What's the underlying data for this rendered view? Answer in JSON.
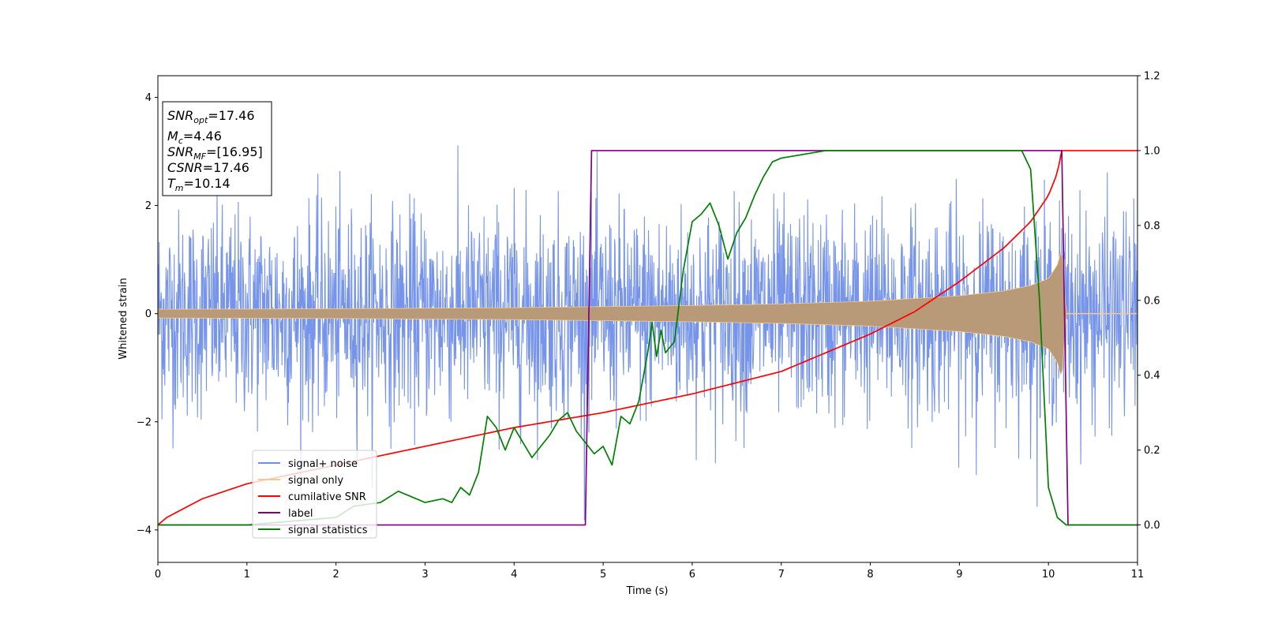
{
  "chart_data": {
    "type": "line",
    "title": "",
    "xlabel": "Time (s)",
    "ylabel": "Whitened strain",
    "xlim": [
      0,
      11
    ],
    "ylim": [
      -4.6,
      4.4
    ],
    "y2lim": [
      -0.1,
      1.2
    ],
    "x_ticks": [
      "0",
      "1",
      "2",
      "3",
      "4",
      "5",
      "6",
      "7",
      "8",
      "9",
      "10",
      "11"
    ],
    "y_ticks": [
      "−4",
      "−2",
      "0",
      "2",
      "4"
    ],
    "y2_ticks": [
      "0.0",
      "0.2",
      "0.4",
      "0.6",
      "0.8",
      "1.0",
      "1.2"
    ],
    "legend_location": "lower-left",
    "annotation_lines": [
      {
        "base": "SNR",
        "sub": "opt",
        "value": "=17.46"
      },
      {
        "base": "M",
        "sub": "c",
        "value": "=4.46"
      },
      {
        "base": "SNR",
        "sub": "MF",
        "value": "=[16.95]"
      },
      {
        "base": "CSNR",
        "sub": "",
        "value": "=17.46"
      },
      {
        "base": "T",
        "sub": "m",
        "value": "=10.14"
      }
    ],
    "series": [
      {
        "name": "signal+ noise",
        "axis": "left",
        "color": "#6f8ee8",
        "description_values": "noise band roughly ±2.5 with spikes up to about ±4, from t=0 to t=11"
      },
      {
        "name": "signal only",
        "axis": "left",
        "color": "#f5c98a",
        "envelope": {
          "x": [
            0,
            1,
            2,
            3,
            4,
            5,
            6,
            7,
            8,
            9,
            9.5,
            9.8,
            10.0,
            10.1,
            10.15,
            10.2,
            11
          ],
          "amplitude": [
            0.08,
            0.085,
            0.09,
            0.1,
            0.11,
            0.13,
            0.15,
            0.18,
            0.23,
            0.33,
            0.42,
            0.52,
            0.65,
            0.9,
            1.2,
            0.0,
            0.0
          ]
        }
      },
      {
        "name": "cumilative SNR",
        "axis": "right",
        "color": "#ff0000",
        "x": [
          0,
          0.1,
          0.5,
          1,
          2,
          3,
          4,
          5,
          6,
          7,
          8,
          8.5,
          9,
          9.5,
          9.8,
          10.0,
          10.1,
          10.15,
          11
        ],
        "values": [
          0.0,
          0.02,
          0.07,
          0.11,
          0.16,
          0.21,
          0.26,
          0.3,
          0.35,
          0.41,
          0.51,
          0.57,
          0.65,
          0.74,
          0.81,
          0.88,
          0.94,
          1.0,
          1.0
        ]
      },
      {
        "name": "label",
        "axis": "right",
        "color": "#800080",
        "x": [
          0,
          4.8,
          4.87,
          10.15,
          10.22,
          11
        ],
        "values": [
          0,
          0,
          1,
          1,
          0,
          0
        ]
      },
      {
        "name": "signal statistics",
        "axis": "right",
        "color": "#008000",
        "x": [
          0,
          0.5,
          1.0,
          1.5,
          2.0,
          2.2,
          2.5,
          2.7,
          2.8,
          3.0,
          3.2,
          3.3,
          3.4,
          3.5,
          3.6,
          3.7,
          3.8,
          3.9,
          4.0,
          4.1,
          4.2,
          4.3,
          4.4,
          4.5,
          4.6,
          4.7,
          4.8,
          4.9,
          5.0,
          5.1,
          5.2,
          5.3,
          5.4,
          5.5,
          5.55,
          5.6,
          5.65,
          5.7,
          5.8,
          5.9,
          6.0,
          6.1,
          6.2,
          6.3,
          6.4,
          6.5,
          6.6,
          6.7,
          6.8,
          6.9,
          7.0,
          7.5,
          8.0,
          8.5,
          9.0,
          9.5,
          9.7,
          9.8,
          9.9,
          10.0,
          10.1,
          10.2,
          11.0
        ],
        "values": [
          0.0,
          0.0,
          0.0,
          0.01,
          0.02,
          0.05,
          0.06,
          0.09,
          0.08,
          0.06,
          0.07,
          0.06,
          0.1,
          0.08,
          0.14,
          0.29,
          0.26,
          0.2,
          0.26,
          0.22,
          0.18,
          0.21,
          0.24,
          0.28,
          0.3,
          0.25,
          0.22,
          0.19,
          0.21,
          0.16,
          0.29,
          0.27,
          0.33,
          0.46,
          0.54,
          0.45,
          0.52,
          0.46,
          0.49,
          0.68,
          0.81,
          0.83,
          0.86,
          0.8,
          0.71,
          0.78,
          0.82,
          0.88,
          0.93,
          0.97,
          0.98,
          1.0,
          1.0,
          1.0,
          1.0,
          1.0,
          1.0,
          0.95,
          0.6,
          0.1,
          0.02,
          0.0,
          0.0
        ]
      }
    ]
  }
}
